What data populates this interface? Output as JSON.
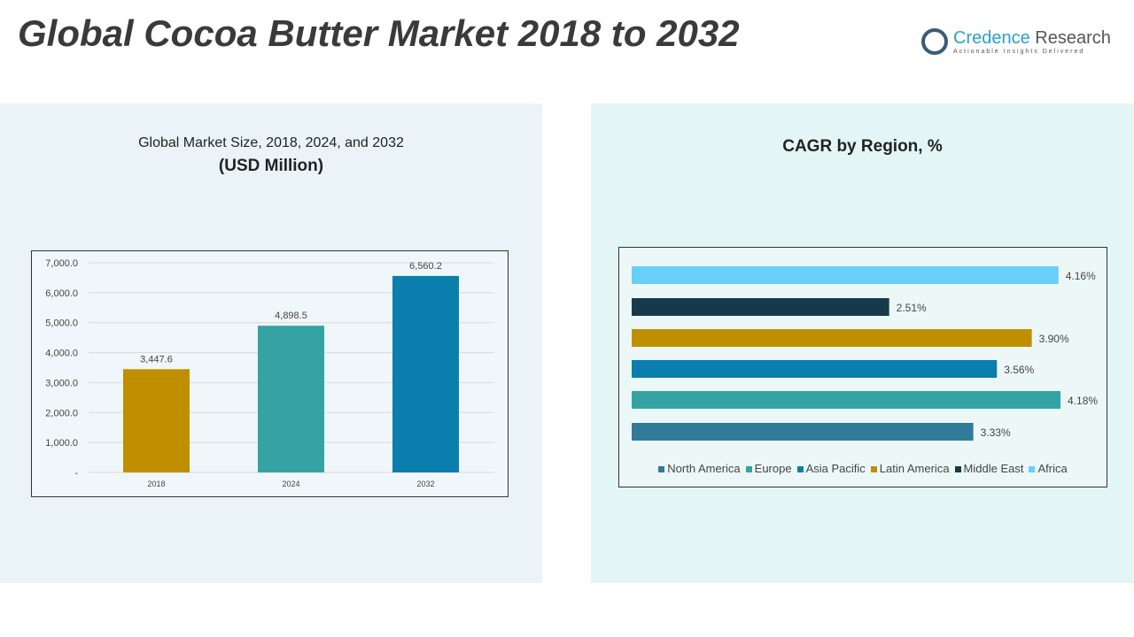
{
  "title": "Global Cocoa Butter Market 2018 to 2032",
  "logo": {
    "name_a": "Credence",
    "name_b": " Research",
    "tagline": "Actionable Insights Delivered"
  },
  "chart_data": [
    {
      "type": "bar",
      "title": "Global Market Size, 2018, 2024, and 2032",
      "subtitle": "(USD Million)",
      "categories": [
        "2018",
        "2024",
        "2032"
      ],
      "values": [
        3447.6,
        4898.5,
        6560.2
      ],
      "value_labels": [
        "3,447.6",
        "4,898.5",
        "6,560.2"
      ],
      "colors": [
        "#bf8f00",
        "#35a3a3",
        "#0a7ead"
      ],
      "ylim": [
        0,
        7000
      ],
      "yticks": [
        "-",
        "1,000.0",
        "2,000.0",
        "3,000.0",
        "4,000.0",
        "5,000.0",
        "6,000.0",
        "7,000.0"
      ],
      "grid": true
    },
    {
      "type": "bar",
      "orientation": "horizontal",
      "title": "CAGR by Region, %",
      "series": [
        {
          "name": "North America",
          "value": 3.33,
          "label": "3.33%",
          "color": "#317b9a"
        },
        {
          "name": "Europe",
          "value": 4.18,
          "label": "4.18%",
          "color": "#35a3a3"
        },
        {
          "name": "Asia Pacific",
          "value": 3.56,
          "label": "3.56%",
          "color": "#0a7ead"
        },
        {
          "name": "Latin America",
          "value": 3.9,
          "label": "3.90%",
          "color": "#bf8f00"
        },
        {
          "name": "Middle East",
          "value": 2.51,
          "label": "2.51%",
          "color": "#173a4a"
        },
        {
          "name": "Africa",
          "value": 4.16,
          "label": "4.16%",
          "color": "#66d0f8"
        }
      ],
      "legend": "bottom"
    }
  ]
}
